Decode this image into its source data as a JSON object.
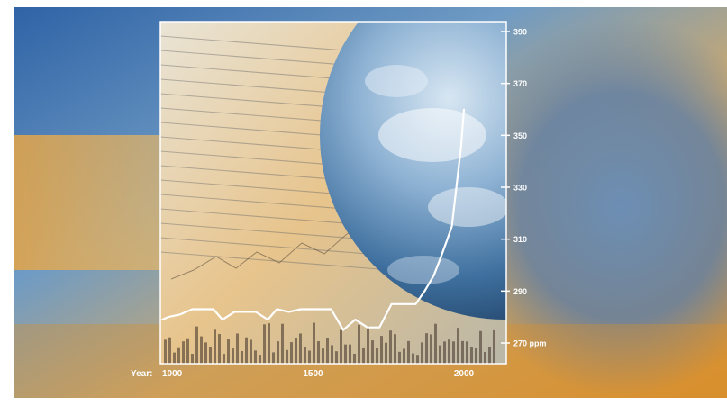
{
  "chart_data": {
    "type": "line",
    "title": "",
    "xlabel": "Year:",
    "ylabel": "",
    "y_unit": "ppm",
    "xlim": [
      1000,
      2000
    ],
    "ylim": [
      265,
      395
    ],
    "x_ticks": [
      1000,
      1500,
      2000
    ],
    "y_ticks": [
      270,
      290,
      310,
      330,
      350,
      370,
      390
    ],
    "grid": false,
    "legend": "none",
    "line_color": "#ffffff",
    "series": [
      {
        "x": [
          1000,
          1020,
          1060,
          1100,
          1130,
          1170,
          1200,
          1240,
          1280,
          1310,
          1350,
          1380,
          1420,
          1460,
          1500,
          1530,
          1560,
          1600,
          1640,
          1680,
          1720,
          1760,
          1800,
          1840,
          1870,
          1900,
          1920,
          1945,
          1960,
          1975,
          1990,
          2000
        ],
        "values": [
          279,
          280,
          281,
          283,
          283,
          283,
          279,
          282,
          282,
          282,
          279,
          283,
          282,
          283,
          283,
          283,
          283,
          275,
          279,
          276,
          276,
          285,
          285,
          285,
          290,
          296,
          302,
          310,
          315,
          330,
          345,
          360
        ]
      }
    ]
  }
}
